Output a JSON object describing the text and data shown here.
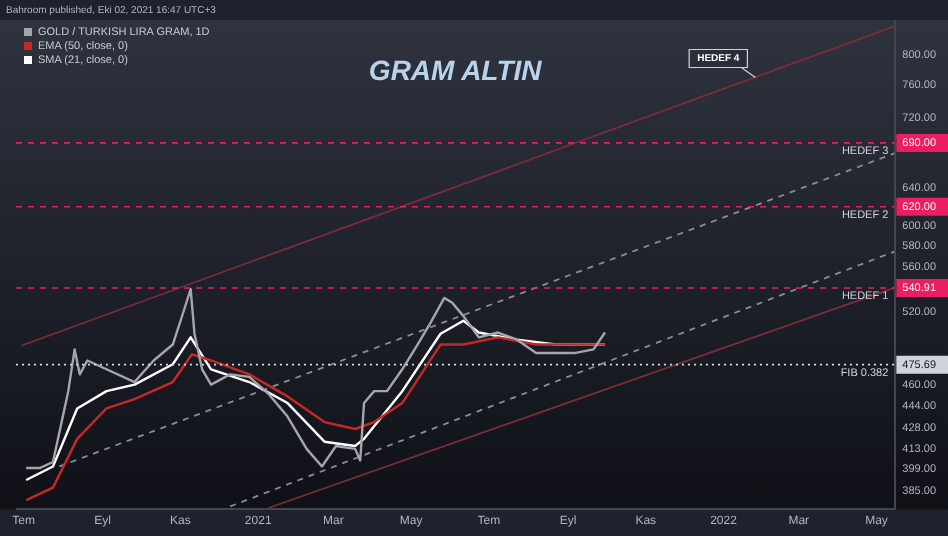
{
  "chart_data": {
    "type": "line",
    "title": "GRAM ALTIN",
    "log": "y",
    "legend": "top left",
    "annotations": [
      "Bahroom published, Eki 02, 2021 16:47 UTC+3",
      {
        "text": "HEDEF 4",
        "x": "2022-01-26",
        "y": 770
      }
    ],
    "xlim": [
      "2020-06-25",
      "2022-05-15"
    ],
    "xticks": [
      {
        "value": "2020-07-01",
        "label": "Tem"
      },
      {
        "value": "2020-09-01",
        "label": "Eyl"
      },
      {
        "value": "2020-11-01",
        "label": "Kas"
      },
      {
        "value": "2021-01-01",
        "label": "2021"
      },
      {
        "value": "2021-03-01",
        "label": "Mar"
      },
      {
        "value": "2021-05-01",
        "label": "May"
      },
      {
        "value": "2021-07-01",
        "label": "Tem"
      },
      {
        "value": "2021-09-01",
        "label": "Eyl"
      },
      {
        "value": "2021-11-01",
        "label": "Kas"
      },
      {
        "value": "2022-01-01",
        "label": "2022"
      },
      {
        "value": "2022-03-01",
        "label": "Mar"
      },
      {
        "value": "2022-05-01",
        "label": "May"
      }
    ],
    "ylim": [
      373,
      848
    ],
    "yticks": [
      {
        "value": 385,
        "label": "385.00"
      },
      {
        "value": 399,
        "label": "399.00"
      },
      {
        "value": 413,
        "label": "413.00"
      },
      {
        "value": 428,
        "label": "428.00"
      },
      {
        "value": 444,
        "label": "444.00"
      },
      {
        "value": 460,
        "label": "460.00"
      },
      {
        "value": 475.69,
        "label": "475.69"
      },
      {
        "value": 520,
        "label": "520.00"
      },
      {
        "value": 540.91,
        "label": "540.91"
      },
      {
        "value": 560,
        "label": "560.00"
      },
      {
        "value": 580,
        "label": "580.00"
      },
      {
        "value": 600,
        "label": "600.00"
      },
      {
        "value": 620,
        "label": "620.00"
      },
      {
        "value": 640,
        "label": "640.00"
      },
      {
        "value": 690,
        "label": "690.00"
      },
      {
        "value": 720,
        "label": "720.00"
      },
      {
        "value": 760,
        "label": "760.00"
      },
      {
        "value": 800,
        "label": "800.00"
      }
    ],
    "ref_lines": [
      {
        "axis": "y",
        "value": 690,
        "label": "HEDEF 3",
        "color": "#e91e63",
        "line_style": "dashed"
      },
      {
        "axis": "y",
        "value": 620,
        "label": "HEDEF 2",
        "color": "#e91e63",
        "line_style": "dashed"
      },
      {
        "axis": "y",
        "value": 540.91,
        "label": "HEDEF 1",
        "color": "#e91e63",
        "line_style": "dashed"
      },
      {
        "axis": "y",
        "value": 475.69,
        "label": "FIB 0.382",
        "color": "#d1d4dc",
        "line_style": "dotted"
      }
    ],
    "series": [
      {
        "name": "GOLD / TURKISH LIRA GRAM, 1D",
        "color": "#a3a6af",
        "x": [
          "2020-07-03",
          "2020-07-14",
          "2020-07-24",
          "2020-08-05",
          "2020-08-10",
          "2020-08-14",
          "2020-08-20",
          "2020-09-04",
          "2020-09-26",
          "2020-10-11",
          "2020-10-26",
          "2020-11-04",
          "2020-11-09",
          "2020-11-12",
          "2020-11-18",
          "2020-11-25",
          "2020-12-10",
          "2020-12-25",
          "2021-01-09",
          "2021-01-24",
          "2021-02-08",
          "2021-02-20",
          "2021-03-03",
          "2021-03-18",
          "2021-03-22",
          "2021-03-25",
          "2021-04-02",
          "2021-04-12",
          "2021-04-24",
          "2021-05-06",
          "2021-05-16",
          "2021-05-27",
          "2021-06-02",
          "2021-06-11",
          "2021-06-23",
          "2021-07-08",
          "2021-07-23",
          "2021-08-07",
          "2021-08-22",
          "2021-09-06",
          "2021-09-21",
          "2021-09-30"
        ],
        "values": [
          400,
          400,
          404,
          455,
          488,
          468,
          479,
          472,
          462,
          479,
          492,
          522,
          540,
          501,
          472,
          460,
          468,
          466,
          453,
          436,
          413,
          401,
          415,
          413,
          405,
          446,
          455,
          455,
          472,
          492,
          510,
          532,
          528,
          516,
          498,
          502,
          496,
          485,
          485,
          485,
          488,
          502
        ]
      },
      {
        "name": "EMA (50, close, 0)",
        "color": "#c62828",
        "x": [
          "2020-07-03",
          "2020-07-24",
          "2020-08-12",
          "2020-09-04",
          "2020-09-26",
          "2020-10-26",
          "2020-11-10",
          "2020-11-25",
          "2020-12-25",
          "2021-01-24",
          "2021-02-22",
          "2021-03-18",
          "2021-04-02",
          "2021-04-24",
          "2021-05-24",
          "2021-06-11",
          "2021-07-08",
          "2021-08-07",
          "2021-09-06",
          "2021-09-30"
        ],
        "values": [
          379,
          387,
          420,
          442,
          449,
          462,
          484,
          479,
          468,
          451,
          432,
          427,
          432,
          446,
          492,
          492,
          498,
          492,
          492,
          492
        ]
      },
      {
        "name": "SMA (21, close, 0)",
        "color": "#ffffff",
        "x": [
          "2020-07-03",
          "2020-07-24",
          "2020-08-12",
          "2020-09-04",
          "2020-09-26",
          "2020-10-26",
          "2020-11-09",
          "2020-11-25",
          "2020-12-25",
          "2021-01-24",
          "2021-02-22",
          "2021-03-18",
          "2021-03-25",
          "2021-04-24",
          "2021-05-24",
          "2021-06-11",
          "2021-06-23",
          "2021-07-23",
          "2021-08-22",
          "2021-09-21",
          "2021-09-30"
        ],
        "values": [
          392,
          401,
          442,
          455,
          460,
          476,
          498,
          472,
          462,
          446,
          418,
          415,
          420,
          455,
          501,
          512,
          502,
          496,
          492,
          492,
          492
        ]
      },
      {
        "color": "#7a2c3a",
        "x": [
          "2020-06-29",
          "2022-05-15"
        ],
        "values": [
          491,
          839
        ]
      },
      {
        "color": "#8a8d96",
        "line_style": "dashed",
        "x": [
          "2020-07-29",
          "2022-05-15"
        ],
        "values": [
          401,
          678
        ]
      },
      {
        "color": "#8a8d96",
        "line_style": "dashed",
        "x": [
          "2020-12-10",
          "2022-05-15"
        ],
        "values": [
          375,
          575
        ]
      },
      {
        "color": "#7a2c3a",
        "x": [
          "2021-01-09",
          "2022-05-15"
        ],
        "values": [
          374,
          541
        ]
      }
    ]
  }
}
